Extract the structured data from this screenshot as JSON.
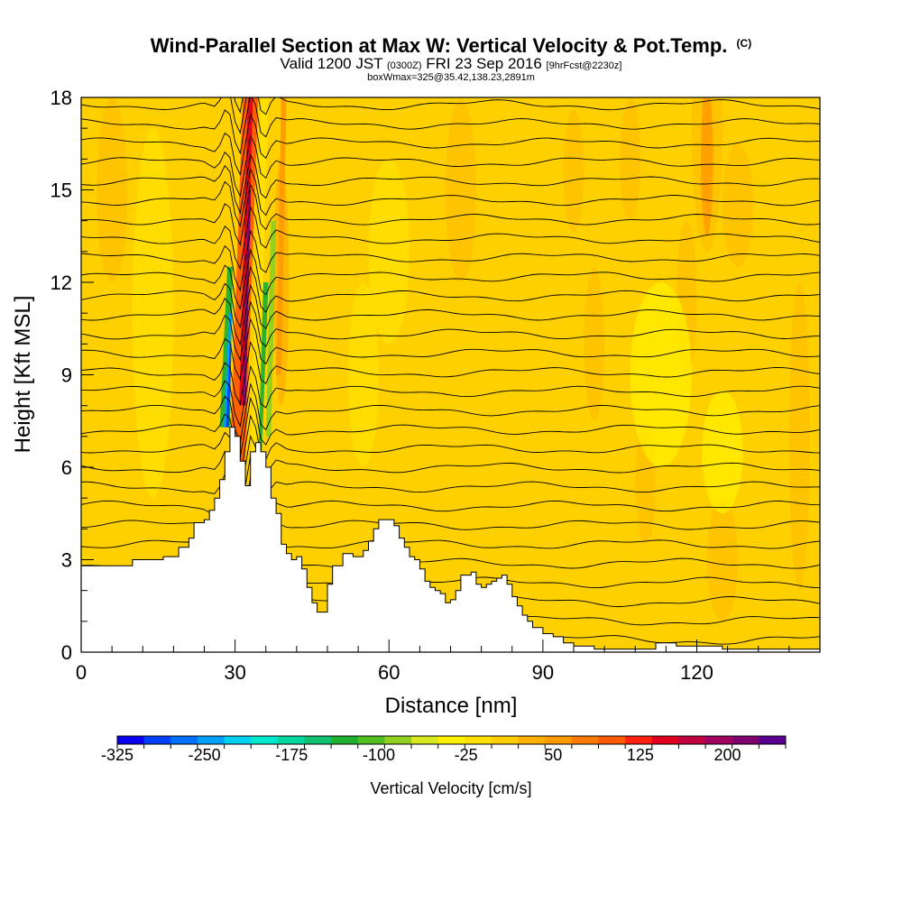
{
  "chart_data": {
    "type": "heatmap",
    "title": "Wind-Parallel Section at Max W: Vertical Velocity & Pot.Temp.",
    "title_units": "(C)",
    "subtitle": {
      "main_left": "Valid 1200 JST",
      "utc": "(0300Z)",
      "main_right": "FRI 23 Sep 2016",
      "fcst": "[9hrFcst@2230z]"
    },
    "subtitle2": "boxWmax=325@35.42,138.23,2891m",
    "xlabel": "Distance [nm]",
    "ylabel": "Height [Kft MSL]",
    "xlim": [
      0,
      144
    ],
    "ylim": [
      0,
      18
    ],
    "xticks": [
      0,
      30,
      60,
      90,
      120
    ],
    "yticks": [
      0,
      3,
      6,
      9,
      12,
      15,
      18
    ],
    "colorbar": {
      "label": "Vertical Velocity [cm/s]",
      "min": -325,
      "max": 250,
      "step": 25,
      "tick_values": [
        -325,
        -250,
        -175,
        -100,
        -25,
        50,
        125,
        200
      ],
      "colors": [
        "#0a00f0",
        "#0040ff",
        "#0070ff",
        "#00a0ff",
        "#00d0f0",
        "#00e8d0",
        "#00d8a0",
        "#10c070",
        "#20b030",
        "#50c020",
        "#90d020",
        "#d8e820",
        "#fff000",
        "#ffe000",
        "#ffcc00",
        "#ffb000",
        "#ff9a00",
        "#ff7a00",
        "#ff5a00",
        "#ff2010",
        "#e00020",
        "#c00040",
        "#a00060",
        "#800070",
        "#5a0090"
      ]
    },
    "terrain_kft": [
      [
        0,
        2.8
      ],
      [
        8,
        2.8
      ],
      [
        10,
        3.0
      ],
      [
        14,
        3.0
      ],
      [
        16,
        3.1
      ],
      [
        19,
        3.4
      ],
      [
        21,
        3.7
      ],
      [
        22,
        4.2
      ],
      [
        24,
        4.3
      ],
      [
        25,
        4.6
      ],
      [
        26,
        5.0
      ],
      [
        27,
        5.6
      ],
      [
        28,
        6.5
      ],
      [
        29,
        7.3
      ],
      [
        30,
        7.0
      ],
      [
        31,
        6.2
      ],
      [
        32,
        5.4
      ],
      [
        33,
        6.5
      ],
      [
        34,
        6.8
      ],
      [
        35,
        6.5
      ],
      [
        36,
        6.0
      ],
      [
        37,
        5.0
      ],
      [
        38,
        4.5
      ],
      [
        39,
        3.5
      ],
      [
        40,
        3.2
      ],
      [
        41,
        3.0
      ],
      [
        42,
        3.1
      ],
      [
        43,
        2.7
      ],
      [
        44,
        2.1
      ],
      [
        45,
        1.6
      ],
      [
        46,
        1.3
      ],
      [
        47,
        1.3
      ],
      [
        48,
        2.2
      ],
      [
        49,
        2.8
      ],
      [
        51,
        3.2
      ],
      [
        53,
        3.1
      ],
      [
        55,
        3.3
      ],
      [
        56,
        3.6
      ],
      [
        57,
        4.0
      ],
      [
        58,
        4.3
      ],
      [
        60,
        4.3
      ],
      [
        61,
        4.1
      ],
      [
        62,
        3.7
      ],
      [
        63,
        3.4
      ],
      [
        64,
        3.1
      ],
      [
        65,
        3.0
      ],
      [
        66,
        2.7
      ],
      [
        67,
        2.3
      ],
      [
        68,
        2.1
      ],
      [
        69,
        2.0
      ],
      [
        70,
        1.9
      ],
      [
        71,
        1.6
      ],
      [
        72,
        1.7
      ],
      [
        73,
        2.0
      ],
      [
        74,
        2.5
      ],
      [
        76,
        2.6
      ],
      [
        77,
        2.2
      ],
      [
        78,
        2.1
      ],
      [
        79,
        2.2
      ],
      [
        80,
        2.3
      ],
      [
        81,
        2.4
      ],
      [
        82,
        2.5
      ],
      [
        83,
        2.2
      ],
      [
        84,
        1.8
      ],
      [
        85,
        1.5
      ],
      [
        86,
        1.2
      ],
      [
        87,
        1.0
      ],
      [
        88,
        0.8
      ],
      [
        90,
        0.6
      ],
      [
        92,
        0.5
      ],
      [
        94,
        0.3
      ],
      [
        96,
        0.2
      ],
      [
        100,
        0.1
      ],
      [
        104,
        0.1
      ],
      [
        108,
        0.1
      ],
      [
        112,
        0.3
      ],
      [
        116,
        0.2
      ],
      [
        120,
        0.2
      ],
      [
        125,
        0.1
      ],
      [
        130,
        0.1
      ],
      [
        135,
        0.1
      ],
      [
        140,
        0.1
      ],
      [
        144,
        0.1
      ]
    ],
    "theta_contour_count": 30
  }
}
